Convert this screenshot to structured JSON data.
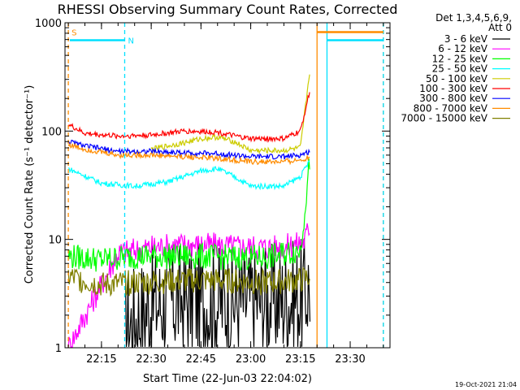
{
  "chart_data": {
    "type": "line",
    "title": "RHESSI Observing Summary Count Rates, Corrected",
    "xlabel": "Start Time (22-Jun-03 22:04:02)",
    "ylabel": "Corrected Count Rate (s⁻¹ detector⁻¹)",
    "y_scale": "log",
    "ylim": [
      1,
      1000
    ],
    "xlim": [
      "22:04",
      "23:42"
    ],
    "x_ticks": [
      "22:15",
      "22:30",
      "22:45",
      "23:00",
      "23:15",
      "23:30"
    ],
    "y_ticks": [
      "1",
      "10",
      "100",
      "1000"
    ],
    "legend_header": [
      "Det 1,3,4,5,6,9,",
      "Att 0"
    ],
    "legend_placement": "right",
    "timestamp": "19-Oct-2021 21:04",
    "flag_lines": [
      {
        "label": "S",
        "time": "22:05",
        "color": "#ff8c00",
        "style": "dashed",
        "level": 820
      },
      {
        "label": "N",
        "time": "22:22",
        "color": "#00e0ff",
        "style": "dashed",
        "level": 690
      },
      {
        "label": "",
        "time": "23:20",
        "color": "#ff8c00",
        "style": "solid",
        "level": 820
      },
      {
        "label": "",
        "time": "23:23",
        "color": "#00e0ff",
        "style": "solid",
        "level": 690
      },
      {
        "label": "",
        "time": "23:40",
        "color": "#ff8c00",
        "style": "dashed",
        "level": 820
      },
      {
        "label": "",
        "time": "23:40",
        "color": "#00e0ff",
        "style": "dashed",
        "level": 690
      }
    ],
    "series": [
      {
        "name": "3 - 6 keV",
        "color": "#000000",
        "x": [
          "22:22",
          "22:30",
          "22:40",
          "22:50",
          "23:00",
          "23:10",
          "23:16",
          "23:18"
        ],
        "y": [
          1.5,
          2.5,
          2.8,
          2.6,
          2.7,
          2.8,
          3.0,
          4.0
        ]
      },
      {
        "name": "6 - 12 keV",
        "color": "#ff00ff",
        "x": [
          "22:05",
          "22:20",
          "22:30",
          "22:40",
          "22:50",
          "23:00",
          "23:10",
          "23:16",
          "23:18"
        ],
        "y": [
          1.0,
          7.5,
          8.5,
          9.0,
          8.8,
          8.5,
          8.5,
          9.5,
          14
        ]
      },
      {
        "name": "12 - 25 keV",
        "color": "#00ff00",
        "x": [
          "22:05",
          "22:15",
          "22:25",
          "22:35",
          "22:45",
          "22:55",
          "23:05",
          "23:15",
          "23:18"
        ],
        "y": [
          7.0,
          6.5,
          7.0,
          7.0,
          7.0,
          6.8,
          6.8,
          8.0,
          60
        ]
      },
      {
        "name": "25 - 50 keV",
        "color": "#00ffff",
        "x": [
          "22:05",
          "22:15",
          "22:25",
          "22:35",
          "22:45",
          "22:50",
          "22:55",
          "23:00",
          "23:10",
          "23:15",
          "23:18"
        ],
        "y": [
          45,
          33,
          31,
          34,
          43,
          45,
          38,
          31,
          31,
          38,
          55
        ]
      },
      {
        "name": "50 - 100 keV",
        "color": "#cccc00",
        "x": [
          "22:30",
          "22:40",
          "22:45",
          "22:50",
          "22:55",
          "23:00",
          "23:10",
          "23:15",
          "23:18"
        ],
        "y": [
          68,
          78,
          85,
          88,
          80,
          66,
          66,
          70,
          400
        ]
      },
      {
        "name": "100 - 300 keV",
        "color": "#ff0000",
        "x": [
          "22:05",
          "22:10",
          "22:20",
          "22:30",
          "22:40",
          "22:50",
          "22:55",
          "23:00",
          "23:10",
          "23:15",
          "23:18"
        ],
        "y": [
          115,
          95,
          90,
          92,
          100,
          98,
          90,
          85,
          85,
          100,
          250
        ]
      },
      {
        "name": "300 - 800 keV",
        "color": "#0000ff",
        "x": [
          "22:05",
          "22:10",
          "22:20",
          "22:30",
          "22:40",
          "22:50",
          "23:00",
          "23:10",
          "23:15",
          "23:18"
        ],
        "y": [
          80,
          73,
          65,
          65,
          63,
          62,
          58,
          58,
          60,
          65
        ]
      },
      {
        "name": "800 - 7000 keV",
        "color": "#ff8c00",
        "x": [
          "22:05",
          "22:10",
          "22:20",
          "22:30",
          "22:40",
          "22:50",
          "23:00",
          "23:10",
          "23:15",
          "23:18"
        ],
        "y": [
          75,
          68,
          60,
          60,
          58,
          56,
          52,
          52,
          54,
          58
        ]
      },
      {
        "name": "7000 - 15000 keV",
        "color": "#808000",
        "x": [
          "22:05",
          "22:15",
          "22:25",
          "22:35",
          "22:45",
          "22:55",
          "23:05",
          "23:15",
          "23:18"
        ],
        "y": [
          4.5,
          3.8,
          4.0,
          4.1,
          4.2,
          4.1,
          4.0,
          4.2,
          4.5
        ]
      }
    ]
  }
}
